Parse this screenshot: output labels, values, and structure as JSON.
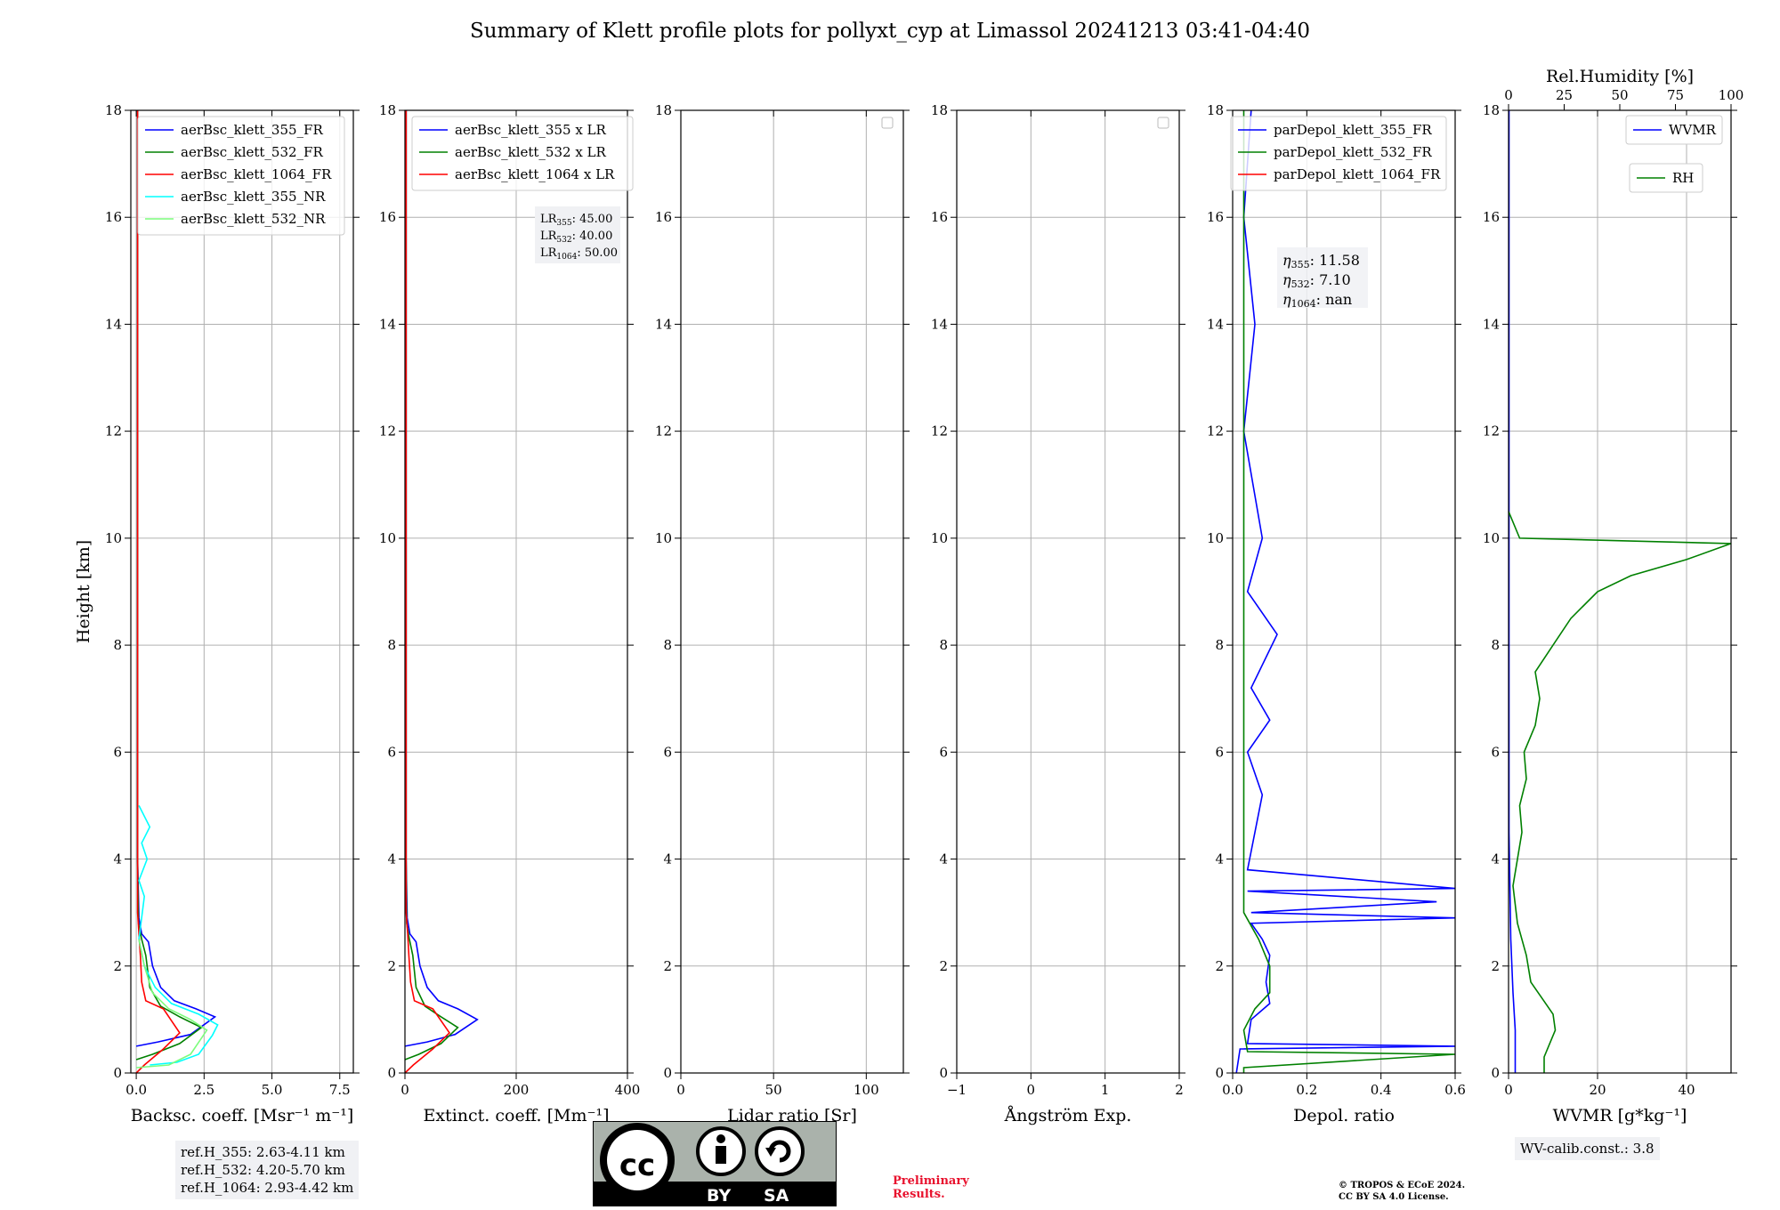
{
  "title": "Summary of Klett profile plots for pollyxt_cyp at Limassol 20241213 03:41-04:40",
  "ref_heights": [
    "ref.H_355: 2.63-4.11 km",
    "ref.H_532: 4.20-5.70 km",
    "ref.H_1064: 2.93-4.42 km"
  ],
  "wv_calib": "WV-calib.const.: 3.8",
  "preliminary": [
    "Preliminary",
    "Results."
  ],
  "copyright": [
    "© TROPOS & ECoE 2024.",
    "CC BY SA 4.0 License."
  ],
  "license_badge": {
    "cc": "cc",
    "by": "BY",
    "sa": "SA"
  },
  "colors": {
    "c355": "#0000ff",
    "c532": "#008000",
    "c1064": "#ff0000",
    "c355nr": "#00ffff",
    "c532nr": "#7cfc7c",
    "grid": "#b0b0b0"
  },
  "chart_data": [
    {
      "type": "line",
      "id": "backscatter",
      "xlabel": "Backsc. coeff. [Msr⁻¹ m⁻¹]",
      "ylabel": "Height [km]",
      "xlim": [
        -0.2,
        8
      ],
      "ylim": [
        0,
        18
      ],
      "xticks": [
        0,
        2.5,
        5.0,
        7.5
      ],
      "xticklabels": [
        "0.0",
        "2.5",
        "5.0",
        "7.5"
      ],
      "yticks": [
        0,
        2,
        4,
        6,
        8,
        10,
        12,
        14,
        16,
        18
      ],
      "legend": [
        "aerBsc_klett_355_FR",
        "aerBsc_klett_532_FR",
        "aerBsc_klett_1064_FR",
        "aerBsc_klett_355_NR",
        "aerBsc_klett_532_NR"
      ],
      "series": [
        {
          "name": "aerBsc_klett_355_FR",
          "color": "c355",
          "points": [
            [
              0.0,
              0.5
            ],
            [
              0.8,
              0.58
            ],
            [
              2.0,
              0.72
            ],
            [
              2.9,
              1.05
            ],
            [
              2.2,
              1.2
            ],
            [
              1.4,
              1.35
            ],
            [
              0.9,
              1.6
            ],
            [
              0.6,
              2.0
            ],
            [
              0.45,
              2.45
            ],
            [
              0.2,
              2.6
            ],
            [
              0.1,
              2.9
            ],
            [
              0.05,
              4
            ],
            [
              0.05,
              18
            ]
          ]
        },
        {
          "name": "aerBsc_klett_532_FR",
          "color": "c532",
          "points": [
            [
              0.0,
              0.25
            ],
            [
              0.6,
              0.35
            ],
            [
              1.6,
              0.55
            ],
            [
              2.4,
              0.85
            ],
            [
              1.6,
              1.05
            ],
            [
              0.9,
              1.25
            ],
            [
              0.5,
              1.6
            ],
            [
              0.35,
              2.2
            ],
            [
              0.2,
              2.5
            ],
            [
              0.08,
              2.8
            ],
            [
              0.05,
              4
            ],
            [
              0.05,
              18
            ]
          ]
        },
        {
          "name": "aerBsc_klett_1064_FR",
          "color": "c1064",
          "points": [
            [
              0.0,
              0.0
            ],
            [
              0.3,
              0.15
            ],
            [
              1.0,
              0.45
            ],
            [
              1.6,
              0.75
            ],
            [
              1.0,
              1.2
            ],
            [
              0.35,
              1.35
            ],
            [
              0.2,
              1.7
            ],
            [
              0.15,
              2.2
            ],
            [
              0.1,
              2.6
            ],
            [
              0.05,
              3
            ],
            [
              0.05,
              18
            ]
          ]
        },
        {
          "name": "aerBsc_klett_355_NR",
          "color": "c355nr",
          "points": [
            [
              0.5,
              0.15
            ],
            [
              1.5,
              0.2
            ],
            [
              2.3,
              0.35
            ],
            [
              2.8,
              0.7
            ],
            [
              3.0,
              0.9
            ],
            [
              2.3,
              1.1
            ],
            [
              1.3,
              1.3
            ],
            [
              0.7,
              1.6
            ],
            [
              0.3,
              2.0
            ],
            [
              0.1,
              2.5
            ],
            [
              0.3,
              3.3
            ],
            [
              0.1,
              3.6
            ],
            [
              0.4,
              4.0
            ],
            [
              0.2,
              4.3
            ],
            [
              0.5,
              4.6
            ],
            [
              0.1,
              5.0
            ]
          ]
        },
        {
          "name": "aerBsc_klett_532_NR",
          "color": "c532nr",
          "points": [
            [
              0.0,
              0.1
            ],
            [
              1.2,
              0.15
            ],
            [
              2.0,
              0.35
            ],
            [
              2.6,
              0.8
            ],
            [
              2.0,
              1.0
            ],
            [
              1.2,
              1.2
            ],
            [
              0.6,
              1.5
            ],
            [
              0.3,
              2.0
            ],
            [
              0.1,
              2.5
            ]
          ]
        }
      ]
    },
    {
      "type": "line",
      "id": "extinction",
      "xlabel": "Extinct. coeff. [Mm⁻¹]",
      "xlim": [
        0,
        400
      ],
      "ylim": [
        0,
        18
      ],
      "xticks": [
        0,
        200,
        400
      ],
      "xticklabels": [
        "0",
        "200",
        "400"
      ],
      "yticks": [
        0,
        2,
        4,
        6,
        8,
        10,
        12,
        14,
        16,
        18
      ],
      "legend": [
        "aerBsc_klett_355 x LR",
        "aerBsc_klett_532 x LR",
        "aerBsc_klett_1064 x LR"
      ],
      "lidar_ratios": {
        "LR_355": "45.00",
        "LR_532": "40.00",
        "LR_1064": "50.00"
      },
      "series": [
        {
          "name": "aerBsc_klett_355 x LR",
          "color": "c355",
          "points": [
            [
              0,
              0.5
            ],
            [
              40,
              0.58
            ],
            [
              90,
              0.72
            ],
            [
              130,
              1.0
            ],
            [
              95,
              1.2
            ],
            [
              60,
              1.35
            ],
            [
              40,
              1.6
            ],
            [
              27,
              2.0
            ],
            [
              20,
              2.45
            ],
            [
              9,
              2.6
            ],
            [
              4,
              2.9
            ],
            [
              2,
              4
            ],
            [
              2,
              18
            ]
          ]
        },
        {
          "name": "aerBsc_klett_532 x LR",
          "color": "c532",
          "points": [
            [
              0,
              0.25
            ],
            [
              25,
              0.35
            ],
            [
              65,
              0.55
            ],
            [
              95,
              0.85
            ],
            [
              65,
              1.05
            ],
            [
              36,
              1.25
            ],
            [
              20,
              1.6
            ],
            [
              14,
              2.2
            ],
            [
              8,
              2.5
            ],
            [
              3,
              2.8
            ],
            [
              2,
              4
            ],
            [
              2,
              18
            ]
          ]
        },
        {
          "name": "aerBsc_klett_1064 x LR",
          "color": "c1064",
          "points": [
            [
              0,
              0.0
            ],
            [
              15,
              0.15
            ],
            [
              50,
              0.45
            ],
            [
              80,
              0.75
            ],
            [
              50,
              1.2
            ],
            [
              17,
              1.35
            ],
            [
              10,
              1.7
            ],
            [
              7,
              2.2
            ],
            [
              5,
              2.6
            ],
            [
              2,
              3
            ],
            [
              2,
              18
            ]
          ]
        }
      ]
    },
    {
      "type": "line",
      "id": "lidar_ratio",
      "xlabel": "Lidar ratio [Sr]",
      "xlim": [
        0,
        120
      ],
      "ylim": [
        0,
        18
      ],
      "xticks": [
        0,
        50,
        100
      ],
      "xticklabels": [
        "0",
        "50",
        "100"
      ],
      "yticks": [
        0,
        2,
        4,
        6,
        8,
        10,
        12,
        14,
        16,
        18
      ],
      "series": []
    },
    {
      "type": "line",
      "id": "angstrom",
      "xlabel": "Ångström Exp.",
      "xlim": [
        -1,
        2
      ],
      "ylim": [
        0,
        18
      ],
      "xticks": [
        -1,
        0,
        1,
        2
      ],
      "xticklabels": [
        "−1",
        "0",
        "1",
        "2"
      ],
      "yticks": [
        0,
        2,
        4,
        6,
        8,
        10,
        12,
        14,
        16,
        18
      ],
      "series": []
    },
    {
      "type": "line",
      "id": "depol",
      "xlabel": "Depol. ratio",
      "xlim": [
        0,
        0.6
      ],
      "ylim": [
        0,
        18
      ],
      "xticks": [
        0.0,
        0.2,
        0.4,
        0.6
      ],
      "xticklabels": [
        "0.0",
        "0.2",
        "0.4",
        "0.6"
      ],
      "yticks": [
        0,
        2,
        4,
        6,
        8,
        10,
        12,
        14,
        16,
        18
      ],
      "legend": [
        "parDepol_klett_355_FR",
        "parDepol_klett_532_FR",
        "parDepol_klett_1064_FR"
      ],
      "eta": {
        "eta_355": "11.58",
        "eta_532": "7.10",
        "eta_1064": "nan"
      },
      "series": [
        {
          "name": "parDepol_klett_355_FR",
          "color": "c355",
          "points": [
            [
              0.01,
              0
            ],
            [
              0.02,
              0.45
            ],
            [
              0.6,
              0.5
            ],
            [
              0.04,
              0.55
            ],
            [
              0.05,
              1.0
            ],
            [
              0.1,
              1.3
            ],
            [
              0.09,
              1.7
            ],
            [
              0.1,
              2.2
            ],
            [
              0.08,
              2.5
            ],
            [
              0.05,
              2.8
            ],
            [
              0.6,
              2.9
            ],
            [
              0.05,
              3.0
            ],
            [
              0.55,
              3.2
            ],
            [
              0.04,
              3.4
            ],
            [
              0.6,
              3.45
            ],
            [
              0.04,
              3.8
            ],
            [
              0.08,
              5.2
            ],
            [
              0.04,
              6.0
            ],
            [
              0.1,
              6.6
            ],
            [
              0.05,
              7.2
            ],
            [
              0.12,
              8.2
            ],
            [
              0.04,
              9.0
            ],
            [
              0.08,
              10.0
            ],
            [
              0.03,
              12.0
            ],
            [
              0.06,
              14.0
            ],
            [
              0.03,
              16.0
            ],
            [
              0.05,
              18.0
            ]
          ]
        },
        {
          "name": "parDepol_klett_532_FR",
          "color": "c532",
          "points": [
            [
              0.03,
              0
            ],
            [
              0.03,
              0.1
            ],
            [
              0.6,
              0.35
            ],
            [
              0.04,
              0.4
            ],
            [
              0.03,
              0.8
            ],
            [
              0.06,
              1.2
            ],
            [
              0.1,
              1.5
            ],
            [
              0.1,
              2.0
            ],
            [
              0.07,
              2.5
            ],
            [
              0.03,
              3.0
            ],
            [
              0.03,
              18.0
            ]
          ]
        },
        {
          "name": "parDepol_klett_1064_FR",
          "color": "c1064",
          "points": []
        }
      ]
    },
    {
      "type": "line",
      "id": "wvmr",
      "xlabel": "WVMR [g*kg⁻¹]",
      "top_xlabel": "Rel.Humidity [%]",
      "xlim": [
        0,
        50
      ],
      "ylim": [
        0,
        18
      ],
      "xticks": [
        0,
        20,
        40
      ],
      "xticklabels": [
        "0",
        "20",
        "40"
      ],
      "top_xlim": [
        0,
        100
      ],
      "top_xticks": [
        0,
        25,
        50,
        75,
        100
      ],
      "yticks": [
        0,
        2,
        4,
        6,
        8,
        10,
        12,
        14,
        16,
        18
      ],
      "legend": [
        "WVMR",
        "RH"
      ],
      "series": [
        {
          "name": "WVMR",
          "color": "c355",
          "points": [
            [
              1.5,
              0
            ],
            [
              1.5,
              0.8
            ],
            [
              1.0,
              1.5
            ],
            [
              0.5,
              2.5
            ],
            [
              0.3,
              3.5
            ],
            [
              0.1,
              4.5
            ],
            [
              0.1,
              18
            ]
          ]
        },
        {
          "name": "RH",
          "color": "c532",
          "axis": "top",
          "points": [
            [
              16,
              0
            ],
            [
              16,
              0.3
            ],
            [
              18,
              0.5
            ],
            [
              21,
              0.8
            ],
            [
              20,
              1.1
            ],
            [
              15,
              1.4
            ],
            [
              10,
              1.7
            ],
            [
              8,
              2.2
            ],
            [
              4,
              2.8
            ],
            [
              2,
              3.5
            ],
            [
              4,
              4.0
            ],
            [
              6,
              4.5
            ],
            [
              5,
              5.0
            ],
            [
              8,
              5.5
            ],
            [
              7,
              6.0
            ],
            [
              12,
              6.5
            ],
            [
              14,
              7.0
            ],
            [
              12,
              7.5
            ],
            [
              20,
              8.0
            ],
            [
              28,
              8.5
            ],
            [
              40,
              9.0
            ],
            [
              55,
              9.3
            ],
            [
              80,
              9.6
            ],
            [
              100,
              9.9
            ],
            [
              5,
              10.0
            ],
            [
              0,
              10.5
            ]
          ]
        }
      ]
    }
  ]
}
